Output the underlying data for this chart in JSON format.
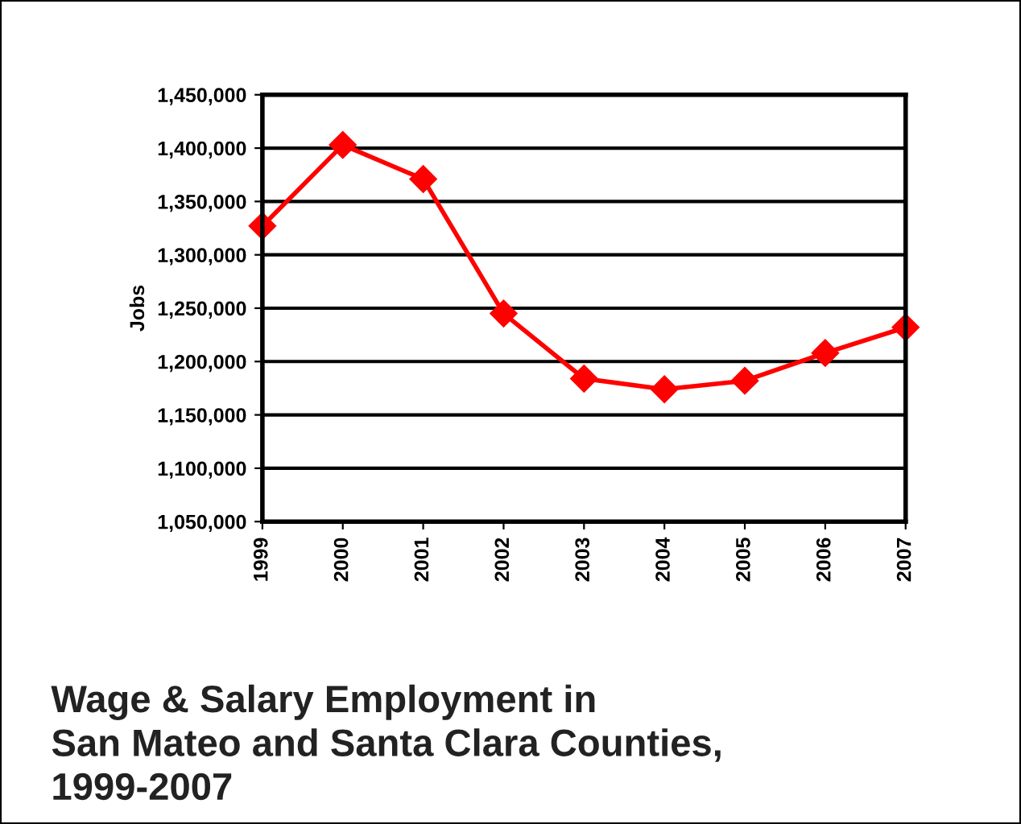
{
  "chart_data": {
    "type": "line",
    "title": "Wage & Salary Employment in\nSan Mateo and Santa Clara Counties,\n1999-2007",
    "ylabel": "Jobs",
    "categories": [
      "1999",
      "2000",
      "2001",
      "2002",
      "2003",
      "2004",
      "2005",
      "2006",
      "2007"
    ],
    "series": [
      {
        "color": "#ff0000",
        "values": [
          1327000,
          1403000,
          1371000,
          1245000,
          1184000,
          1174000,
          1182000,
          1208000,
          1232000
        ]
      }
    ],
    "ylim": [
      1050000,
      1450000
    ],
    "yticks": [
      {
        "value": 1050000,
        "label": "1,050,000"
      },
      {
        "value": 1100000,
        "label": "1,100,000"
      },
      {
        "value": 1150000,
        "label": "1,150,000"
      },
      {
        "value": 1200000,
        "label": "1,200,000"
      },
      {
        "value": 1250000,
        "label": "1,250,000"
      },
      {
        "value": 1300000,
        "label": "1,300,000"
      },
      {
        "value": 1350000,
        "label": "1,350,000"
      },
      {
        "value": 1400000,
        "label": "1,400,000"
      },
      {
        "value": 1450000,
        "label": "1,450,000"
      }
    ],
    "grid": "y",
    "marker": "diamond",
    "line_style": "solid"
  }
}
